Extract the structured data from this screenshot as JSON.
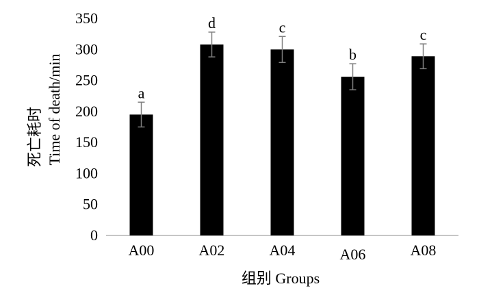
{
  "chart_data": {
    "type": "bar",
    "categories": [
      "A00",
      "A02",
      "A04",
      "A06",
      "A08"
    ],
    "values": [
      195,
      308,
      300,
      256,
      289
    ],
    "errors": [
      20,
      20,
      21,
      21,
      20
    ],
    "significance_labels": [
      "a",
      "d",
      "c",
      "b",
      "c"
    ],
    "title": "",
    "xlabel": "组别  Groups",
    "ylabel_line1": "死亡耗时",
    "ylabel_line2": "Time of death/min",
    "ylim": [
      0,
      350
    ],
    "yticks": [
      0,
      50,
      100,
      150,
      200,
      250,
      300,
      350
    ],
    "grid": false,
    "legend": false,
    "bar_color": "#000000",
    "error_bar_color": "#7f7f7f"
  }
}
